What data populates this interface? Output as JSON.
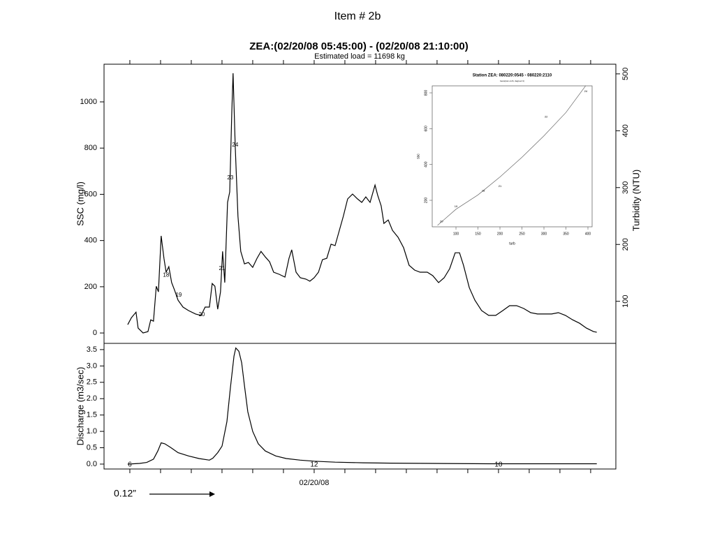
{
  "title": "Item # 2b",
  "annotation": "0.12”",
  "chart_data": [
    {
      "type": "line",
      "title": "ZEA:(02/20/08 05:45:00) - (02/20/08 21:10:00)",
      "subtitle": "Estimated load = 11698 kg",
      "y_label": "SSC (mg/l)",
      "y2_label": "Turbidity (NTU)",
      "color": "#000000",
      "x": [
        5.93,
        6.05,
        6.2,
        6.27,
        6.43,
        6.59,
        6.68,
        6.77,
        6.86,
        6.93,
        7.02,
        7.11,
        7.18,
        7.27,
        7.36,
        7.45,
        7.57,
        7.73,
        7.91,
        8.14,
        8.32,
        8.45,
        8.59,
        8.68,
        8.77,
        8.86,
        8.95,
        9.02,
        9.09,
        9.18,
        9.25,
        9.32,
        9.36,
        9.43,
        9.52,
        9.61,
        9.73,
        9.86,
        10.0,
        10.14,
        10.27,
        10.41,
        10.55,
        10.68,
        10.86,
        11.05,
        11.18,
        11.27,
        11.41,
        11.55,
        11.73,
        11.86,
        12.0,
        12.14,
        12.27,
        12.41,
        12.55,
        12.68,
        12.82,
        12.95,
        13.09,
        13.25,
        13.41,
        13.55,
        13.68,
        13.82,
        13.98,
        14.07,
        14.18,
        14.27,
        14.41,
        14.55,
        14.73,
        14.91,
        15.09,
        15.27,
        15.45,
        15.68,
        15.86,
        16.05,
        16.23,
        16.41,
        16.59,
        16.73,
        16.86,
        17.05,
        17.23,
        17.45,
        17.68,
        17.91,
        18.14,
        18.36,
        18.59,
        18.82,
        19.05,
        19.27,
        19.5,
        19.73,
        19.95,
        20.18,
        20.41,
        20.64,
        20.86,
        21.09,
        21.2
      ],
      "values": [
        36,
        66,
        90,
        21,
        0,
        6,
        57,
        51,
        202,
        178,
        420,
        323,
        263,
        287,
        218,
        187,
        142,
        112,
        97,
        82,
        76,
        112,
        112,
        214,
        202,
        103,
        178,
        353,
        218,
        565,
        610,
        958,
        1124,
        807,
        505,
        353,
        299,
        305,
        284,
        323,
        353,
        329,
        308,
        263,
        254,
        242,
        323,
        360,
        263,
        239,
        233,
        224,
        239,
        263,
        317,
        323,
        384,
        378,
        444,
        505,
        580,
        601,
        580,
        565,
        589,
        565,
        640,
        595,
        550,
        474,
        489,
        444,
        414,
        369,
        293,
        272,
        263,
        263,
        248,
        218,
        239,
        278,
        347,
        347,
        293,
        196,
        142,
        97,
        76,
        76,
        97,
        118,
        118,
        106,
        88,
        82,
        82,
        82,
        88,
        76,
        57,
        42,
        21,
        6,
        3
      ],
      "samples": {
        "x": [
          7.18,
          7.59,
          8.34,
          9.0,
          9.27,
          9.43
        ],
        "values": [
          250,
          163,
          79,
          278,
          671,
          813
        ],
        "labels": [
          "18",
          "19",
          "20",
          "21",
          "23",
          "24"
        ],
        "color": "#cc00cc"
      },
      "xlim": [
        5.16,
        21.82
      ],
      "minor_xticks": [
        6,
        7,
        8,
        9,
        10,
        11,
        12,
        13,
        14,
        15,
        16,
        17,
        18,
        19,
        20,
        21
      ],
      "ylim": [
        -45,
        1163
      ],
      "yticks": [
        0,
        200,
        400,
        600,
        800,
        1000
      ],
      "y2lim": [
        26,
        517
      ],
      "y2ticks": [
        100,
        200,
        300,
        400,
        500
      ]
    },
    {
      "type": "line",
      "y_label": "Discharge (m3/sec)",
      "color": "#000000",
      "x": [
        5.93,
        6.32,
        6.55,
        6.77,
        6.91,
        7.02,
        7.14,
        7.34,
        7.57,
        7.91,
        8.25,
        8.59,
        8.7,
        8.86,
        9.0,
        9.16,
        9.27,
        9.39,
        9.45,
        9.55,
        9.64,
        9.73,
        9.84,
        10.0,
        10.18,
        10.41,
        10.75,
        11.09,
        11.55,
        12.0,
        12.68,
        13.59,
        14.5,
        15.86,
        17.68,
        19.5,
        21.2
      ],
      "values": [
        0.0,
        0.02,
        0.05,
        0.15,
        0.4,
        0.65,
        0.62,
        0.5,
        0.35,
        0.25,
        0.17,
        0.12,
        0.18,
        0.35,
        0.55,
        1.3,
        2.3,
        3.3,
        3.55,
        3.45,
        3.1,
        2.4,
        1.6,
        1.0,
        0.62,
        0.4,
        0.25,
        0.17,
        0.12,
        0.09,
        0.06,
        0.04,
        0.03,
        0.02,
        0.01,
        0.01,
        0.01
      ],
      "point_labels": {
        "x": [
          6,
          12,
          18
        ],
        "labels": [
          "6",
          "12",
          "10"
        ]
      },
      "xlim": [
        5.16,
        21.82
      ],
      "minor_xticks": [
        6,
        7,
        8,
        9,
        10,
        11,
        12,
        13,
        14,
        15,
        16,
        17,
        18,
        19,
        20,
        21
      ],
      "xticks": [
        {
          "value": 12,
          "label": "02/20/08"
        }
      ],
      "ylim": [
        -0.15,
        3.69
      ],
      "yticks": [
        {
          "value": 0,
          "label": "0.0"
        },
        0.5,
        {
          "value": 1,
          "label": "1.0"
        },
        1.5,
        {
          "value": 2,
          "label": "2.0"
        },
        2.5,
        {
          "value": 3,
          "label": "3.0"
        },
        3.5
      ]
    },
    {
      "type": "scatter",
      "title": "Station ZEA: 080220:0545 - 080220:2110",
      "subtitle": "loess(ssc~turb, degree=1)",
      "x_label": "turb",
      "y_label": "ssc",
      "color": "#000000",
      "points": {
        "x": [
          67,
          100,
          162,
          200,
          305,
          395
        ],
        "values": [
          81,
          166,
          252,
          279,
          665,
          809
        ],
        "labels": [
          "20",
          "19",
          "18",
          "21",
          "22",
          "24"
        ]
      },
      "fit": {
        "x": [
          58,
          100,
          150,
          200,
          250,
          300,
          350,
          395
        ],
        "values": [
          60,
          150,
          230,
          330,
          440,
          560,
          690,
          840
        ]
      },
      "xlim": [
        46,
        409.5
      ],
      "xticks": [
        100,
        150,
        200,
        250,
        300,
        350,
        400
      ],
      "ylim": [
        52,
        839
      ],
      "yticks": [
        200,
        400,
        600,
        800
      ]
    }
  ]
}
